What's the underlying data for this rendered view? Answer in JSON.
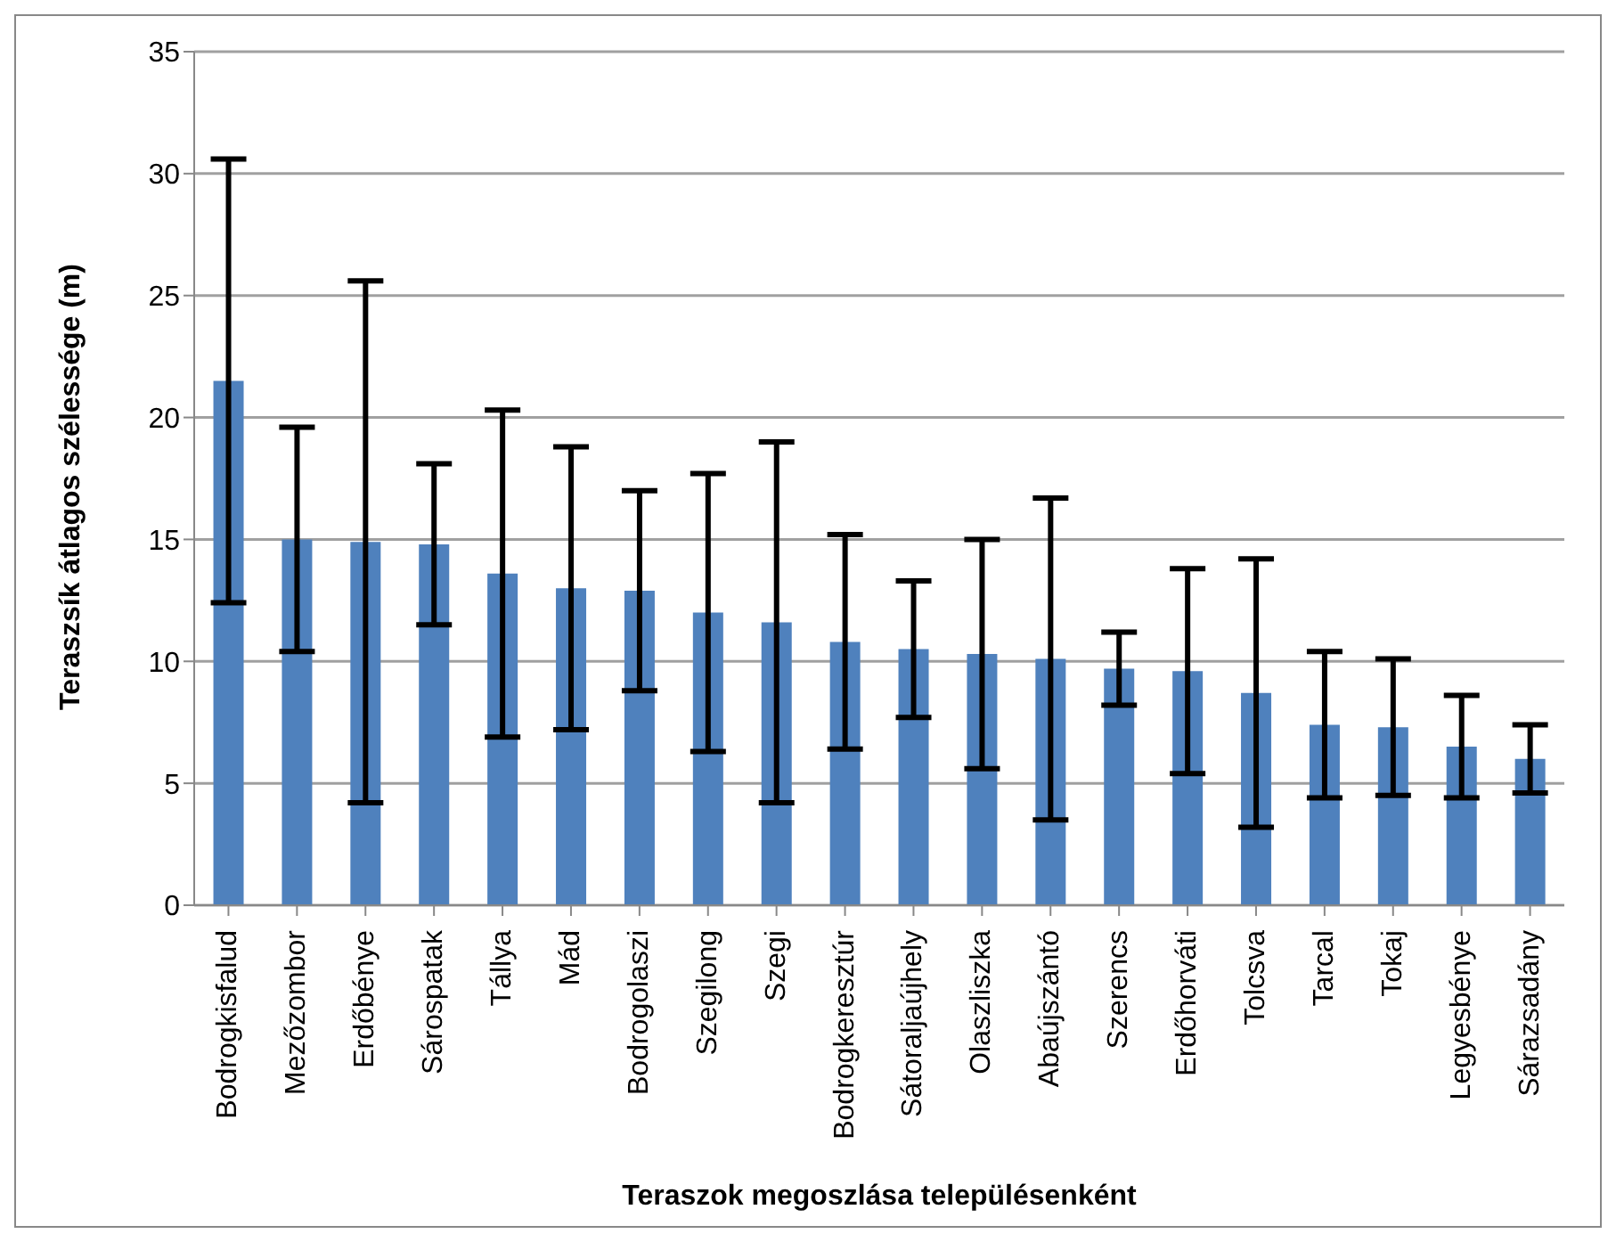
{
  "chart_data": {
    "type": "bar",
    "xlabel": "Teraszok megoszlása településenként",
    "ylabel": "Teraszsík átlagos szélessége (m)",
    "categories": [
      "Bodrogkisfalud",
      "Mezőzombor",
      "Erdőbénye",
      "Sárospatak",
      "Tállya",
      "Mád",
      "Bodrogolaszi",
      "Szegilong",
      "Szegi",
      "Bodrogkeresztúr",
      "Sátoraljaújhely",
      "Olaszliszka",
      "Abaújszántó",
      "Szerencs",
      "Erdőhorváti",
      "Tolcsva",
      "Tarcal",
      "Tokaj",
      "Legyesbénye",
      "Sárazsadány"
    ],
    "values": [
      21.5,
      15.0,
      14.9,
      14.8,
      13.6,
      13.0,
      12.9,
      12.0,
      11.6,
      10.8,
      10.5,
      10.3,
      10.1,
      9.7,
      9.6,
      8.7,
      7.4,
      7.3,
      6.5,
      6.0
    ],
    "errors": [
      9.1,
      4.6,
      10.7,
      3.3,
      6.7,
      5.8,
      4.1,
      5.7,
      7.4,
      4.4,
      2.8,
      4.7,
      6.6,
      1.5,
      4.2,
      5.5,
      3.0,
      2.8,
      2.1,
      1.4
    ],
    "color": "#4f81bd",
    "ylim": [
      0,
      35
    ],
    "yticks": [
      0,
      5,
      10,
      15,
      20,
      25,
      30,
      35
    ],
    "grid": "y",
    "legend": false
  }
}
